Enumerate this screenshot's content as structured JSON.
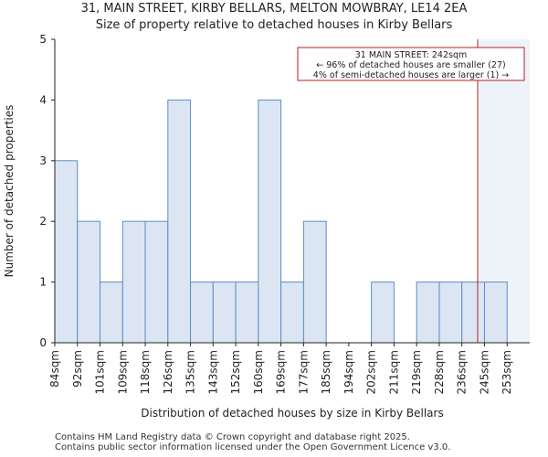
{
  "header": {
    "title_line1": "31, MAIN STREET, KIRBY BELLARS, MELTON MOWBRAY, LE14 2EA",
    "title_line2": "Size of property relative to detached houses in Kirby Bellars"
  },
  "chart_data": {
    "type": "bar",
    "categories": [
      "84sqm",
      "92sqm",
      "101sqm",
      "109sqm",
      "118sqm",
      "126sqm",
      "135sqm",
      "143sqm",
      "152sqm",
      "160sqm",
      "169sqm",
      "177sqm",
      "185sqm",
      "194sqm",
      "202sqm",
      "211sqm",
      "219sqm",
      "228sqm",
      "236sqm",
      "245sqm",
      "253sqm"
    ],
    "values": [
      3,
      2,
      1,
      2,
      2,
      4,
      1,
      1,
      1,
      4,
      1,
      2,
      0,
      0,
      1,
      0,
      1,
      1,
      1,
      1,
      0
    ],
    "xlabel": "Distribution of detached houses by size in Kirby Bellars",
    "ylabel": "Number of detached properties",
    "ylim": [
      0,
      5
    ],
    "yticks": [
      0,
      1,
      2,
      3,
      4,
      5
    ],
    "bar_color": "#dce6f2",
    "bar_edge_color": "#5b8dc9",
    "highlight_color": "#eef3fa",
    "marker": {
      "value_sqm": 242,
      "color": "#b22222"
    },
    "annotation": {
      "line1": "31 MAIN STREET: 242sqm",
      "line2": "← 96% of detached houses are smaller (27)",
      "line3": "4% of semi-detached houses are larger (1) →"
    }
  },
  "footer": {
    "line1": "Contains HM Land Registry data © Crown copyright and database right 2025.",
    "line2": "Contains public sector information licensed under the Open Government Licence v3.0."
  }
}
